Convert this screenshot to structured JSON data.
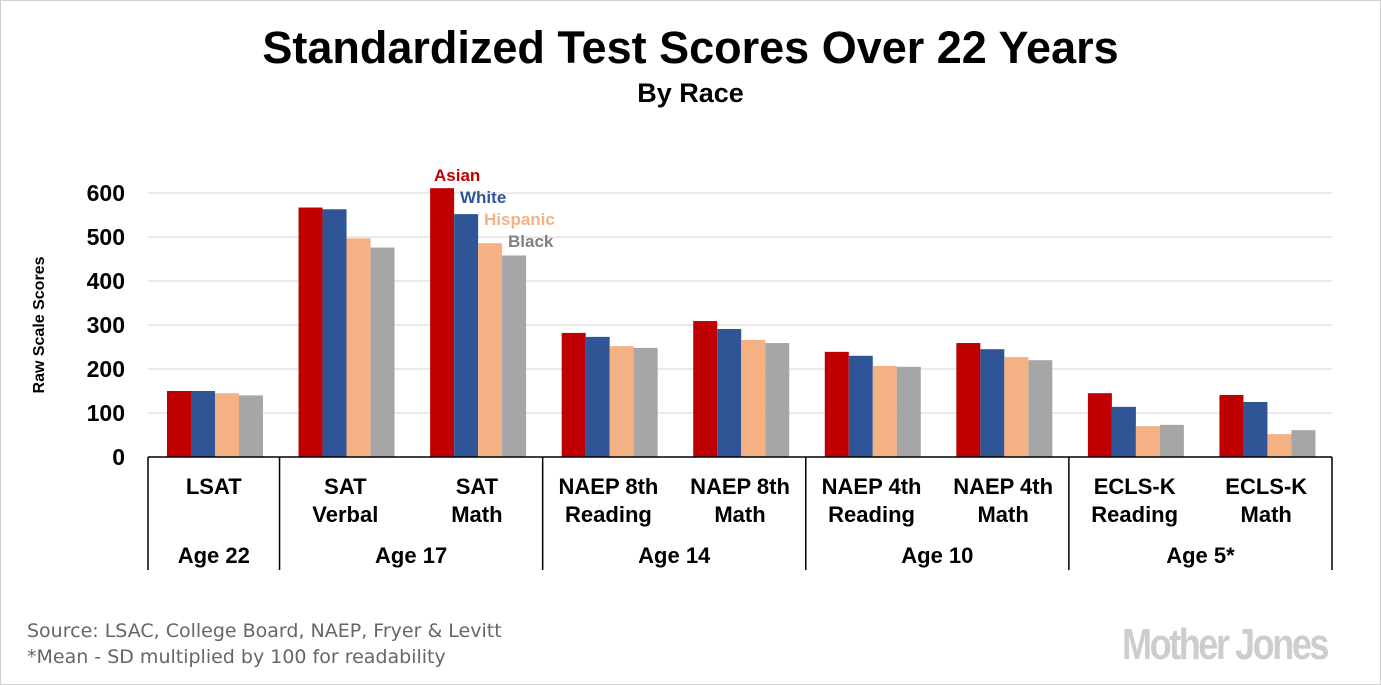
{
  "chart_data": {
    "type": "bar",
    "title": "Standardized Test Scores Over 22 Years",
    "subtitle": "By Race",
    "ylabel": "Raw Scale Scores",
    "ylim": [
      0,
      600
    ],
    "yticks": [
      0,
      100,
      200,
      300,
      400,
      500,
      600
    ],
    "grid": true,
    "legend_placement": "inline above SAT Math bars",
    "categories": [
      {
        "line1": "LSAT",
        "line2": ""
      },
      {
        "line1": "SAT",
        "line2": "Verbal"
      },
      {
        "line1": "SAT",
        "line2": "Math"
      },
      {
        "line1": "NAEP 8th",
        "line2": "Reading"
      },
      {
        "line1": "NAEP 8th",
        "line2": "Math"
      },
      {
        "line1": "NAEP 4th",
        "line2": "Reading"
      },
      {
        "line1": "NAEP 4th",
        "line2": "Math"
      },
      {
        "line1": "ECLS-K",
        "line2": "Reading"
      },
      {
        "line1": "ECLS-K",
        "line2": "Math"
      }
    ],
    "groups": [
      {
        "label": "Age 22",
        "span": 1
      },
      {
        "label": "Age 17",
        "span": 2
      },
      {
        "label": "Age 14",
        "span": 2
      },
      {
        "label": "Age 10",
        "span": 2
      },
      {
        "label": "Age 5*",
        "span": 2
      }
    ],
    "series": [
      {
        "name": "Asian",
        "color": "#c00000",
        "values": [
          150,
          567,
          611,
          282,
          309,
          239,
          259,
          145,
          141
        ]
      },
      {
        "name": "White",
        "color": "#2f5597",
        "values": [
          150,
          563,
          552,
          273,
          291,
          230,
          245,
          114,
          125
        ]
      },
      {
        "name": "Hispanic",
        "color": "#f4b183",
        "values": [
          145,
          497,
          486,
          252,
          266,
          207,
          227,
          70,
          52
        ]
      },
      {
        "name": "Black",
        "color": "#a6a6a6",
        "legend_color": "#808080",
        "values": [
          140,
          476,
          458,
          248,
          259,
          205,
          220,
          73,
          61
        ]
      }
    ]
  },
  "footer": {
    "source": "Source: LSAC, College Board, NAEP, Fryer & Levitt",
    "note": "*Mean - SD multiplied by 100 for readability"
  },
  "logo": "Mother Jones"
}
